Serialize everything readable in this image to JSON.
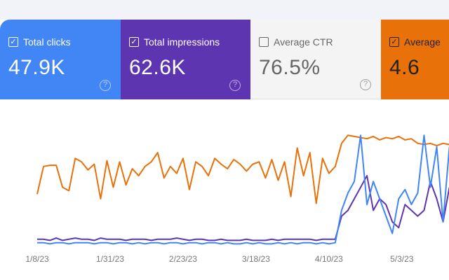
{
  "cards": [
    {
      "label": "Total clicks",
      "value": "47.9K",
      "checked": true,
      "color": "#4285f4"
    },
    {
      "label": "Total impressions",
      "value": "62.6K",
      "checked": true,
      "color": "#5e35b1"
    },
    {
      "label": "Average CTR",
      "value": "76.5%",
      "checked": false,
      "color": "#f4f4f4"
    },
    {
      "label": "Average",
      "value": "4.6",
      "checked": true,
      "color": "#e8710a"
    }
  ],
  "help_glyph": "?",
  "check_glyph": "✓",
  "chart_data": {
    "type": "line",
    "title": "",
    "xlabel": "",
    "ylabel": "",
    "x_tick_labels": [
      "1/8/23",
      "1/31/23",
      "2/23/23",
      "3/18/23",
      "4/10/23",
      "5/3/23"
    ],
    "x_tick_day_index": [
      0,
      23,
      46,
      69,
      92,
      115
    ],
    "x_step_days": 2,
    "ylim": [
      0,
      100
    ],
    "grid": false,
    "series": [
      {
        "name": "Average position",
        "color": "#e8710a",
        "values": [
          44,
          68,
          69,
          69,
          50,
          47,
          75,
          72,
          65,
          70,
          40,
          73,
          50,
          72,
          52,
          66,
          60,
          68,
          72,
          80,
          58,
          68,
          62,
          75,
          48,
          72,
          68,
          60,
          75,
          70,
          66,
          74,
          70,
          64,
          70,
          72,
          58,
          74,
          56,
          72,
          42,
          84,
          60,
          80,
          36,
          75,
          62,
          68,
          88,
          95,
          94,
          93,
          92,
          94,
          91,
          93,
          92,
          94,
          91,
          92,
          88,
          87,
          88,
          86,
          88,
          87
        ]
      },
      {
        "name": "Total impressions",
        "color": "#5e35b1",
        "values": [
          5,
          5,
          4,
          6,
          4,
          5,
          6,
          5,
          5,
          4,
          6,
          5,
          5,
          5,
          4,
          5,
          5,
          5,
          4,
          5,
          5,
          5,
          6,
          5,
          4,
          5,
          5,
          4,
          4,
          5,
          4,
          4,
          4,
          5,
          4,
          4,
          4,
          5,
          4,
          5,
          5,
          5,
          5,
          5,
          4,
          5,
          5,
          5,
          25,
          30,
          40,
          50,
          60,
          30,
          40,
          35,
          20,
          15,
          35,
          30,
          25,
          30,
          55,
          40,
          20,
          50
        ]
      },
      {
        "name": "Total clicks",
        "color": "#4285f4",
        "values": [
          2,
          2,
          1,
          2,
          2,
          1,
          2,
          2,
          2,
          1,
          2,
          2,
          1,
          2,
          2,
          1,
          2,
          1,
          2,
          2,
          1,
          2,
          2,
          1,
          2,
          2,
          1,
          2,
          2,
          1,
          2,
          1,
          1,
          2,
          1,
          2,
          1,
          1,
          2,
          1,
          2,
          1,
          2,
          2,
          1,
          2,
          1,
          2,
          30,
          45,
          55,
          95,
          35,
          55,
          40,
          25,
          10,
          40,
          48,
          35,
          45,
          95,
          50,
          85,
          20,
          85
        ]
      }
    ]
  }
}
